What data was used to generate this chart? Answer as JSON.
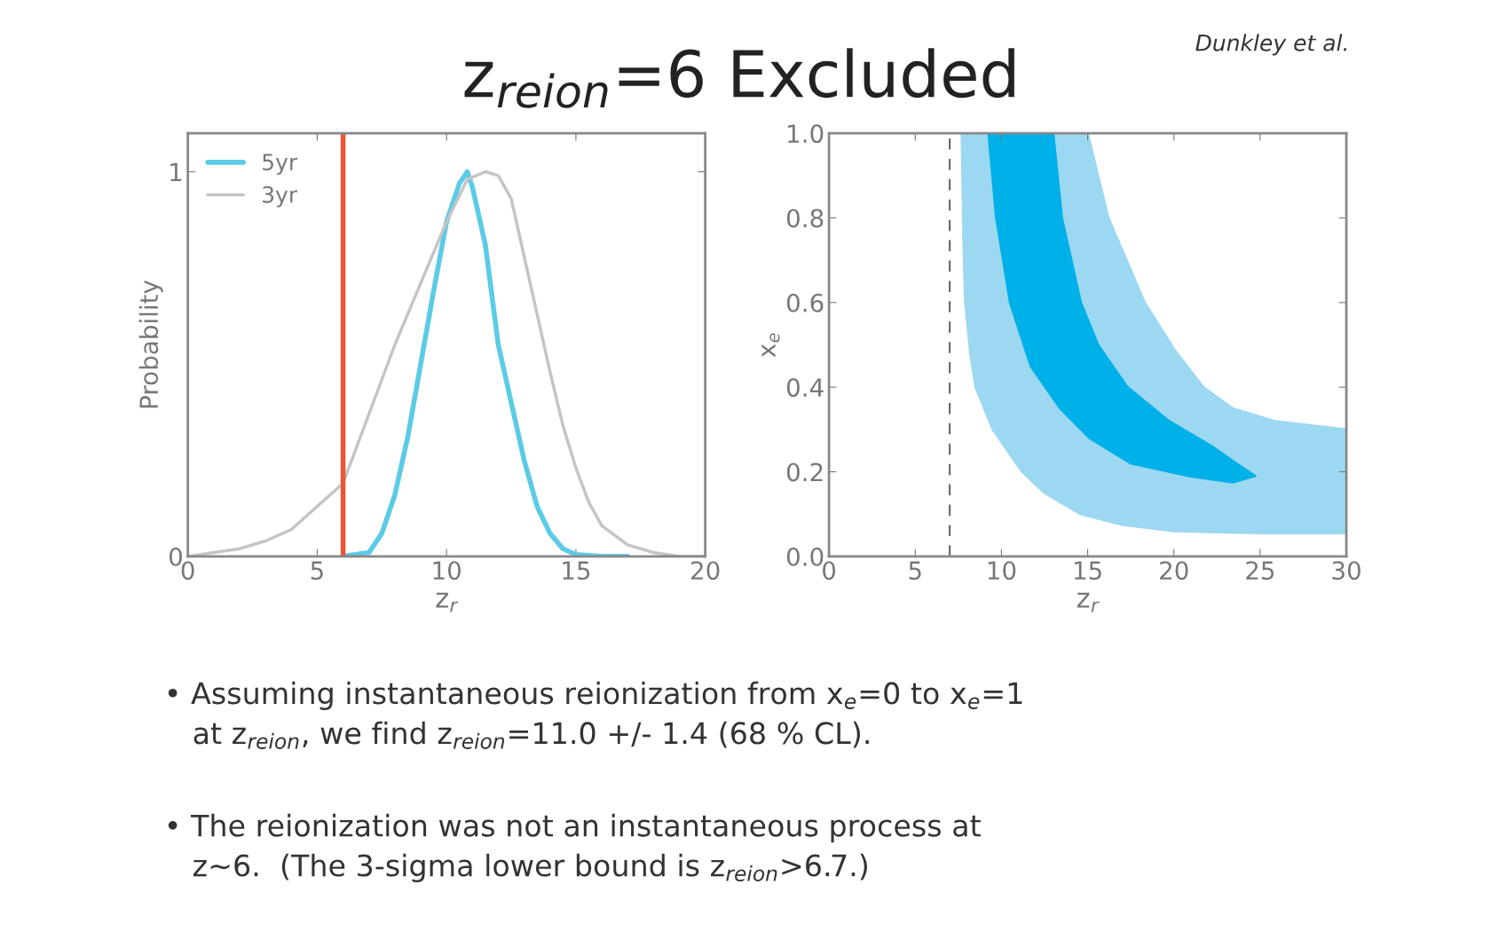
{
  "chart_data": [
    {
      "type": "line",
      "title": "z$_{reion}$=6 Excluded",
      "annotations": [
        "Dunkley et al.",
        "• Assuming instantaneous reionization from x$_{e}$=0 to x$_{e}$=1\n   at z$_{reion}$, we find z$_{reion}$=11.0 +/- 1.4 (68 % CL).",
        "• The reionization was not an instantaneous process at\n   z~6.  (The 3-sigma lower bound is z$_{reion}$>6.7.)"
      ],
      "xlabel": "z$_{r}$",
      "ylabel": "Probability",
      "xlim": [
        0,
        20
      ],
      "xticks": [
        0,
        5,
        10,
        15,
        20
      ],
      "ylim": [
        0,
        1.1
      ],
      "yticks": [
        0,
        1
      ],
      "legend": "top left",
      "grid": false,
      "series": [
        {
          "name": "5yr",
          "color": "#5bcbe6",
          "x": [
            6,
            7,
            7.5,
            8,
            8.5,
            9,
            9.5,
            10,
            10.5,
            10.8,
            11,
            11.5,
            12,
            12.5,
            13,
            13.5,
            14,
            14.5,
            15,
            16,
            17
          ],
          "values": [
            0,
            0.01,
            0.06,
            0.16,
            0.31,
            0.5,
            0.69,
            0.87,
            0.97,
            1.0,
            0.96,
            0.81,
            0.55,
            0.4,
            0.25,
            0.13,
            0.06,
            0.02,
            0.005,
            0,
            0
          ]
        },
        {
          "name": "3yr",
          "color": "#c4c4c4",
          "x": [
            0,
            1,
            2,
            3,
            4,
            5,
            6,
            7,
            8,
            9,
            10,
            10.8,
            11.5,
            12,
            12.5,
            13,
            13.5,
            14,
            14.5,
            15,
            15.5,
            16,
            17,
            18,
            19,
            20
          ],
          "values": [
            0,
            0.01,
            0.02,
            0.04,
            0.07,
            0.13,
            0.19,
            0.37,
            0.55,
            0.71,
            0.87,
            0.98,
            1.0,
            0.99,
            0.93,
            0.78,
            0.63,
            0.48,
            0.34,
            0.23,
            0.14,
            0.08,
            0.03,
            0.01,
            0,
            0
          ]
        }
      ],
      "ref_lines": [
        {
          "axis": "x",
          "value": 6,
          "color": "#e8553a",
          "line_style": "solid"
        }
      ]
    },
    {
      "type": "area",
      "xlabel": "z$_{r}$",
      "ylabel": "x$_{e}$",
      "xlim": [
        0,
        30
      ],
      "xticks": [
        0,
        5,
        10,
        15,
        20,
        25,
        30
      ],
      "ylim": [
        0,
        1
      ],
      "yticks": [
        {
          "value": 0,
          "label": "0.0"
        },
        {
          "value": 0.2,
          "label": "0.2"
        },
        {
          "value": 0.4,
          "label": "0.4"
        },
        {
          "value": 0.6,
          "label": "0.6"
        },
        {
          "value": 0.8,
          "label": "0.8"
        },
        {
          "value": 1,
          "label": "1.0"
        }
      ],
      "grid": false,
      "series": [
        {
          "color": "#9dd8f2",
          "x": [
            7.7,
            7.8,
            7.9,
            8.2,
            8.5,
            9.5,
            11.2,
            12.5,
            14.6,
            17,
            20,
            25,
            30,
            30,
            25.8,
            23.4,
            21.7,
            20,
            18.3,
            16.2,
            15.0
          ],
          "values": [
            1.0,
            0.75,
            0.6,
            0.48,
            0.4,
            0.3,
            0.2,
            0.15,
            0.1,
            0.075,
            0.06,
            0.055,
            0.055,
            0.3,
            0.32,
            0.35,
            0.4,
            0.49,
            0.6,
            0.8,
            1.0
          ]
        },
        {
          "color": "#00b0e8",
          "x": [
            9.25,
            9.7,
            10.5,
            11.7,
            13.4,
            15.1,
            17.5,
            20.9,
            23.4,
            24.7,
            23.6,
            22.2,
            19.7,
            17.3,
            15.6,
            14.6,
            13.5,
            13.0
          ],
          "values": [
            1.0,
            0.8,
            0.6,
            0.45,
            0.35,
            0.28,
            0.22,
            0.19,
            0.175,
            0.19,
            0.22,
            0.26,
            0.32,
            0.4,
            0.5,
            0.6,
            0.8,
            1.0
          ]
        }
      ],
      "ref_lines": [
        {
          "axis": "x",
          "value": 7,
          "color": "#666666",
          "line_style": "dashed"
        }
      ]
    }
  ]
}
